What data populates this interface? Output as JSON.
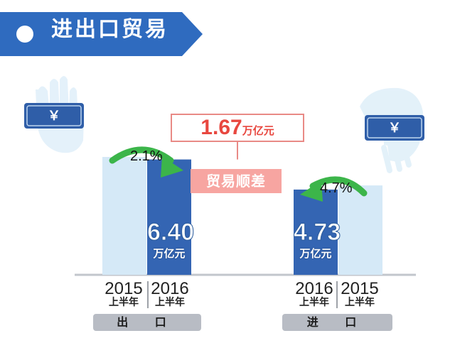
{
  "header": {
    "title": "进出口贸易"
  },
  "colors": {
    "banner": "#2f6bbf",
    "bar_2016": "#3465b3",
    "bar_2015": "#d5e9f7",
    "arrow": "#3cb54a",
    "accent_red": "#e8473f",
    "surplus_fill": "#f7a5a1",
    "pill": "#b8bcc4"
  },
  "icons": {
    "left": "hand-holding-yuan-note-icon",
    "right": "hand-holding-yuan-note-icon"
  },
  "coin_symbol": "￥",
  "surplus": {
    "value": "1.67",
    "unit": "万亿元",
    "label": "贸易顺差"
  },
  "half_year_label": "上半年",
  "chart_data": {
    "type": "bar",
    "unit": "万亿元",
    "groups": [
      {
        "name": "出 口",
        "bars": [
          {
            "year": "2015",
            "period": "上半年",
            "value": 6.54,
            "labeled": false
          },
          {
            "year": "2016",
            "period": "上半年",
            "value": 6.4,
            "labeled": true,
            "label": "6.40",
            "unit": "万亿元"
          }
        ],
        "change": {
          "text": "2.1%",
          "direction": "down"
        }
      },
      {
        "name": "进 口",
        "bars": [
          {
            "year": "2016",
            "period": "上半年",
            "value": 4.73,
            "labeled": true,
            "label": "4.73",
            "unit": "万亿元"
          },
          {
            "year": "2015",
            "period": "上半年",
            "value": 4.96,
            "labeled": false
          }
        ],
        "change": {
          "text": "4.7%",
          "direction": "down"
        }
      }
    ],
    "annotation": {
      "text": "贸易顺差",
      "value": "1.67",
      "unit": "万亿元"
    },
    "ylim": [
      0,
      8
    ],
    "grid": false,
    "legend": "none"
  }
}
